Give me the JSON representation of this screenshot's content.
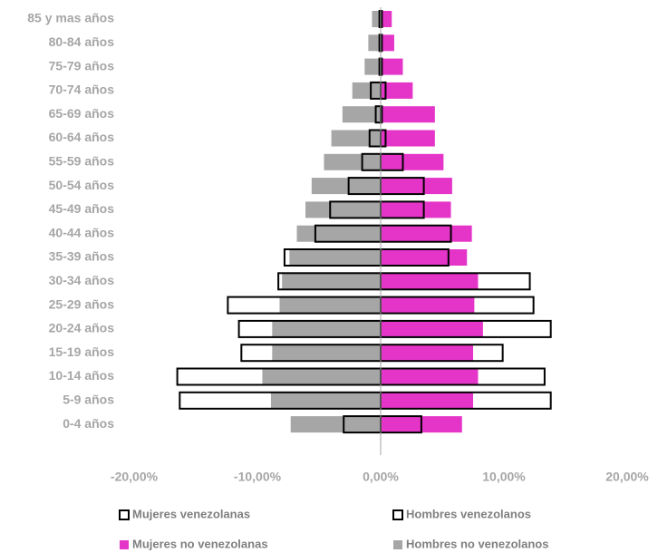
{
  "chart_data": {
    "type": "population-pyramid",
    "categories": [
      "85 y mas años",
      "80-84 años",
      "75-79 años",
      "70-74 años",
      "65-69 años",
      "60-64 años",
      "55-59 años",
      "50-54 años",
      "45-49 años",
      "40-44 años",
      "35-39 años",
      "30-34 años",
      "25-29 años",
      "20-24 años",
      "15-19 años",
      "10-14 años",
      "5-9 años",
      "0-4 años"
    ],
    "series": [
      {
        "name": "Mujeres venezolanas",
        "color": "#000000",
        "fill": "none",
        "values": [
          0.1,
          0.1,
          0.1,
          0.4,
          0.1,
          0.4,
          1.8,
          3.5,
          3.5,
          5.7,
          5.5,
          12.1,
          12.4,
          13.8,
          9.9,
          13.3,
          13.8,
          3.3
        ]
      },
      {
        "name": "Hombres venezolanos",
        "color": "#000000",
        "fill": "none",
        "values": [
          -0.1,
          -0.1,
          -0.1,
          -0.8,
          -0.4,
          -0.9,
          -1.5,
          -2.6,
          -4.1,
          -5.3,
          -7.8,
          -8.3,
          -12.4,
          -11.5,
          -11.3,
          -16.5,
          -16.3,
          -3.0
        ]
      },
      {
        "name": "Mujeres no venezolanas",
        "color": "#e535c8",
        "fill": "#e535c8",
        "values": [
          0.9,
          1.1,
          1.8,
          2.6,
          4.4,
          4.4,
          5.1,
          5.8,
          5.7,
          7.4,
          7.0,
          7.9,
          7.6,
          8.3,
          7.5,
          7.9,
          7.5,
          6.6
        ]
      },
      {
        "name": "Hombres no venezolanos",
        "color": "#a6a6a6",
        "fill": "#a6a6a6",
        "values": [
          -0.7,
          -1.0,
          -1.3,
          -2.3,
          -3.1,
          -4.0,
          -4.6,
          -5.6,
          -6.1,
          -6.8,
          -7.4,
          -8.0,
          -8.2,
          -8.8,
          -8.8,
          -9.6,
          -8.9,
          -7.3
        ]
      }
    ],
    "xlim": [
      -20,
      20
    ],
    "xticks": [
      {
        "value": -20,
        "label": "-20,00%"
      },
      {
        "value": -10,
        "label": "-10,00%"
      },
      {
        "value": 0,
        "label": "0,00%"
      },
      {
        "value": 10,
        "label": "10,00%"
      },
      {
        "value": 20,
        "label": "20,00%"
      }
    ]
  }
}
